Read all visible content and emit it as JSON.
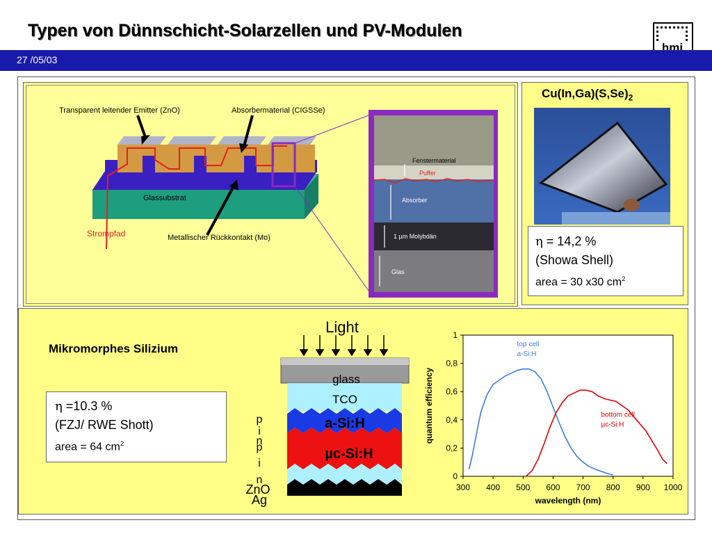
{
  "header": {
    "title": "Typen von Dünnschicht-Solarzellen und PV-Modulen",
    "date": "27 /05/03",
    "logo_text": "hmi"
  },
  "cigs": {
    "labels": {
      "emitter": "Transparent leitender Emitter  (ZnO)",
      "absorber_material": "Absorbermaterial (CIGSSe)",
      "glass_substrate": "Glassubstrat",
      "current_path": "Strompfad",
      "back_contact": "Metallischer Rückkontakt (Mo)"
    },
    "micrograph": {
      "window": "Fenstermaterial",
      "buffer": "Puffer",
      "absorber": "Absorber",
      "molybdenum": "1 µm Molybdän",
      "glass": "Glas"
    },
    "module": {
      "material_main": "Cu(In,Ga)(S,Se)",
      "material_sub": "2",
      "eta_symbol": "η",
      "efficiency": " = 14,2 %",
      "maker": "(Showa Shell)",
      "area": "area = 30 x30 cm",
      "area_sup": "2"
    }
  },
  "micromorph": {
    "heading": "Mikromorphes Silizium",
    "eta_symbol": "η",
    "efficiency": " =10.3 %",
    "maker": "(FZJ/ RWE Shott)",
    "area": "area = 64 cm",
    "area_sup": "2",
    "stack": {
      "light": "Light",
      "glass": "glass",
      "tco": "TCO",
      "top": "a-Si:H",
      "bottom": "µc-Si:H",
      "p1": "p",
      "i1": "i",
      "n1": "n",
      "p2": "p",
      "i2": "i",
      "n2": "n",
      "zno": "ZnO",
      "ag": "Ag"
    }
  },
  "chart_data": {
    "type": "line",
    "xlabel": "wavelength (nm)",
    "ylabel": "quantum efficiency",
    "xlim": [
      300,
      1000
    ],
    "ylim": [
      0,
      1
    ],
    "x_ticks": [
      "300",
      "400",
      "500",
      "600",
      "700",
      "800",
      "900",
      "1000"
    ],
    "y_ticks": [
      "0",
      "0,2",
      "0,4",
      "0,6",
      "0,8",
      "1"
    ],
    "series": [
      {
        "name": "top cell a-Si:H",
        "label_lines": [
          "top cell",
          "a-Si:H"
        ],
        "color": "#3a7be0",
        "points": [
          [
            320,
            0.05
          ],
          [
            330,
            0.14
          ],
          [
            340,
            0.25
          ],
          [
            350,
            0.36
          ],
          [
            360,
            0.46
          ],
          [
            380,
            0.58
          ],
          [
            400,
            0.65
          ],
          [
            420,
            0.68
          ],
          [
            440,
            0.71
          ],
          [
            460,
            0.73
          ],
          [
            480,
            0.75
          ],
          [
            500,
            0.76
          ],
          [
            520,
            0.76
          ],
          [
            540,
            0.74
          ],
          [
            560,
            0.69
          ],
          [
            580,
            0.6
          ],
          [
            600,
            0.49
          ],
          [
            620,
            0.38
          ],
          [
            640,
            0.28
          ],
          [
            660,
            0.2
          ],
          [
            680,
            0.14
          ],
          [
            700,
            0.1
          ],
          [
            720,
            0.07
          ],
          [
            740,
            0.05
          ],
          [
            760,
            0.035
          ],
          [
            780,
            0.02
          ],
          [
            800,
            0.01
          ]
        ]
      },
      {
        "name": "bottom cell µc-Si:H",
        "label_lines": [
          "bottom cell",
          "µc-Si:H"
        ],
        "color": "#dd0000",
        "points": [
          [
            510,
            0.0
          ],
          [
            530,
            0.04
          ],
          [
            550,
            0.12
          ],
          [
            570,
            0.23
          ],
          [
            590,
            0.35
          ],
          [
            610,
            0.45
          ],
          [
            630,
            0.52
          ],
          [
            650,
            0.57
          ],
          [
            670,
            0.59
          ],
          [
            690,
            0.61
          ],
          [
            710,
            0.61
          ],
          [
            730,
            0.6
          ],
          [
            750,
            0.57
          ],
          [
            770,
            0.55
          ],
          [
            790,
            0.54
          ],
          [
            810,
            0.53
          ],
          [
            830,
            0.5
          ],
          [
            850,
            0.47
          ],
          [
            870,
            0.42
          ],
          [
            890,
            0.37
          ],
          [
            910,
            0.32
          ],
          [
            930,
            0.25
          ],
          [
            950,
            0.18
          ],
          [
            965,
            0.12
          ],
          [
            980,
            0.09
          ]
        ]
      }
    ]
  }
}
